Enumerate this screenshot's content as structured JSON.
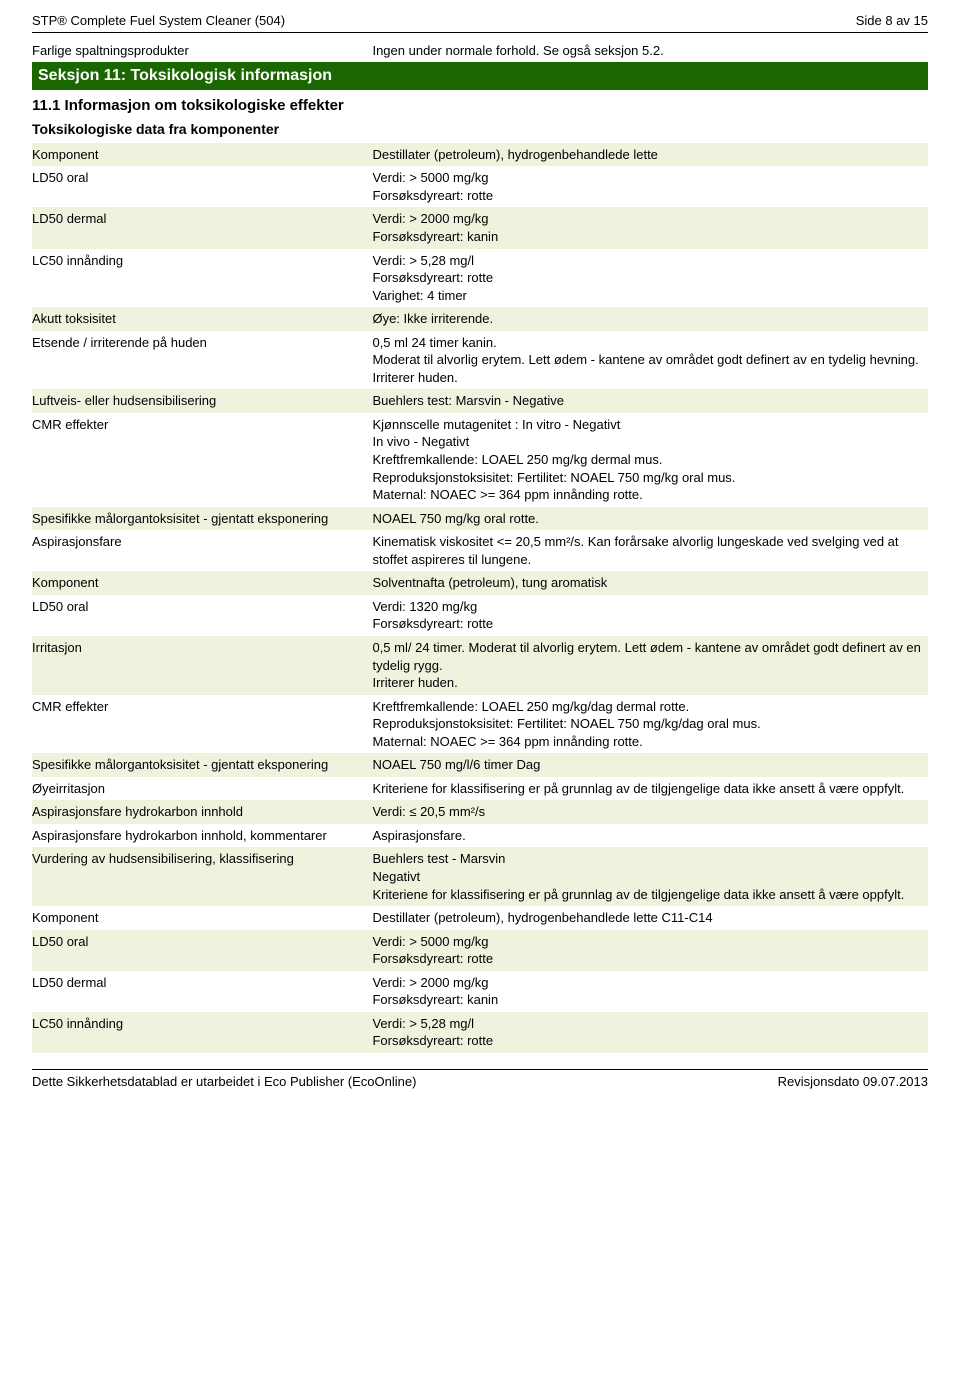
{
  "header": {
    "title": "STP® Complete Fuel System Cleaner (504)",
    "page": "Side 8 av 15"
  },
  "intro": {
    "label": "Farlige spaltningsprodukter",
    "value": "Ingen under normale forhold. Se også seksjon 5.2."
  },
  "section": {
    "title": "Seksjon 11: Toksikologisk informasjon",
    "sub1": "11.1 Informasjon om toksikologiske effekter",
    "sub2": "Toksikologiske data fra komponenter"
  },
  "rows": [
    {
      "shaded": true,
      "label": "Komponent",
      "value": "Destillater (petroleum), hydrogenbehandlede lette"
    },
    {
      "shaded": false,
      "label": "LD50 oral",
      "value": "Verdi: > 5000 mg/kg\nForsøksdyreart: rotte"
    },
    {
      "shaded": true,
      "label": "LD50 dermal",
      "value": "Verdi: > 2000 mg/kg\nForsøksdyreart: kanin"
    },
    {
      "shaded": false,
      "label": "LC50 innånding",
      "value": "Verdi: > 5,28 mg/l\nForsøksdyreart: rotte\nVarighet: 4 timer"
    },
    {
      "shaded": true,
      "label": "Akutt toksisitet",
      "value": "Øye: Ikke irriterende."
    },
    {
      "shaded": false,
      "label": "Etsende / irriterende på huden",
      "value": "0,5 ml 24 timer kanin.\nModerat til alvorlig erytem. Lett ødem - kantene av området godt definert av en tydelig hevning. Irriterer huden."
    },
    {
      "shaded": true,
      "label": "Luftveis- eller hudsensibilisering",
      "value": "Buehlers test: Marsvin - Negative"
    },
    {
      "shaded": false,
      "label": "CMR effekter",
      "value": "Kjønnscelle mutagenitet : In vitro - Negativt\nIn vivo - Negativt\nKreftfremkallende: LOAEL 250 mg/kg dermal mus.\nReproduksjonstoksisitet: Fertilitet: NOAEL 750 mg/kg oral mus.\nMaternal: NOAEC >= 364 ppm innånding rotte."
    },
    {
      "shaded": true,
      "label": "Spesifikke målorgantoksisitet - gjentatt eksponering",
      "value": "NOAEL 750 mg/kg oral rotte."
    },
    {
      "shaded": false,
      "label": "Aspirasjonsfare",
      "value": "Kinematisk viskositet <= 20,5 mm²/s. Kan forårsake alvorlig lungeskade ved svelging ved at stoffet aspireres til lungene."
    },
    {
      "shaded": true,
      "label": "Komponent",
      "value": "Solventnafta (petroleum), tung aromatisk"
    },
    {
      "shaded": false,
      "label": "LD50 oral",
      "value": "Verdi: 1320 mg/kg\nForsøksdyreart: rotte"
    },
    {
      "shaded": true,
      "label": "Irritasjon",
      "value": "0,5 ml/ 24 timer. Moderat til alvorlig erytem. Lett ødem - kantene av området godt definert av en tydelig rygg.\nIrriterer huden."
    },
    {
      "shaded": false,
      "label": "CMR effekter",
      "value": "Kreftfremkallende: LOAEL 250 mg/kg/dag dermal rotte.\nReproduksjonstoksisitet: Fertilitet: NOAEL 750 mg/kg/dag oral mus.\nMaternal: NOAEC >= 364 ppm innånding rotte."
    },
    {
      "shaded": true,
      "label": "Spesifikke målorgantoksisitet - gjentatt eksponering",
      "value": "NOAEL 750 mg/l/6 timer Dag"
    },
    {
      "shaded": false,
      "label": "Øyeirritasjon",
      "value": "Kriteriene for klassifisering er på grunnlag av de tilgjengelige data ikke ansett å være oppfylt."
    },
    {
      "shaded": true,
      "label": "Aspirasjonsfare hydrokarbon innhold",
      "value": "Verdi: ≤ 20,5 mm²/s"
    },
    {
      "shaded": false,
      "label": "Aspirasjonsfare hydrokarbon innhold, kommentarer",
      "value": "Aspirasjonsfare."
    },
    {
      "shaded": true,
      "label": "Vurdering av hudsensibilisering, klassifisering",
      "value": "Buehlers test - Marsvin\nNegativt\nKriteriene for klassifisering er på grunnlag av de tilgjengelige data ikke ansett å være oppfylt."
    },
    {
      "shaded": false,
      "label": "Komponent",
      "value": "Destillater (petroleum), hydrogenbehandlede lette C11-C14"
    },
    {
      "shaded": true,
      "label": "LD50 oral",
      "value": "Verdi: > 5000 mg/kg\nForsøksdyreart: rotte"
    },
    {
      "shaded": false,
      "label": "LD50 dermal",
      "value": "Verdi: > 2000 mg/kg\nForsøksdyreart: kanin"
    },
    {
      "shaded": true,
      "label": "LC50 innånding",
      "value": "Verdi: > 5,28 mg/l\nForsøksdyreart: rotte"
    }
  ],
  "footer": {
    "left": "Dette Sikkerhetsdatablad er utarbeidet i Eco Publisher (EcoOnline)",
    "right": "Revisjonsdato 09.07.2013"
  },
  "colors": {
    "section_bg": "#1a6600",
    "section_fg": "#ffffff",
    "shade_bg": "#eef3de"
  }
}
